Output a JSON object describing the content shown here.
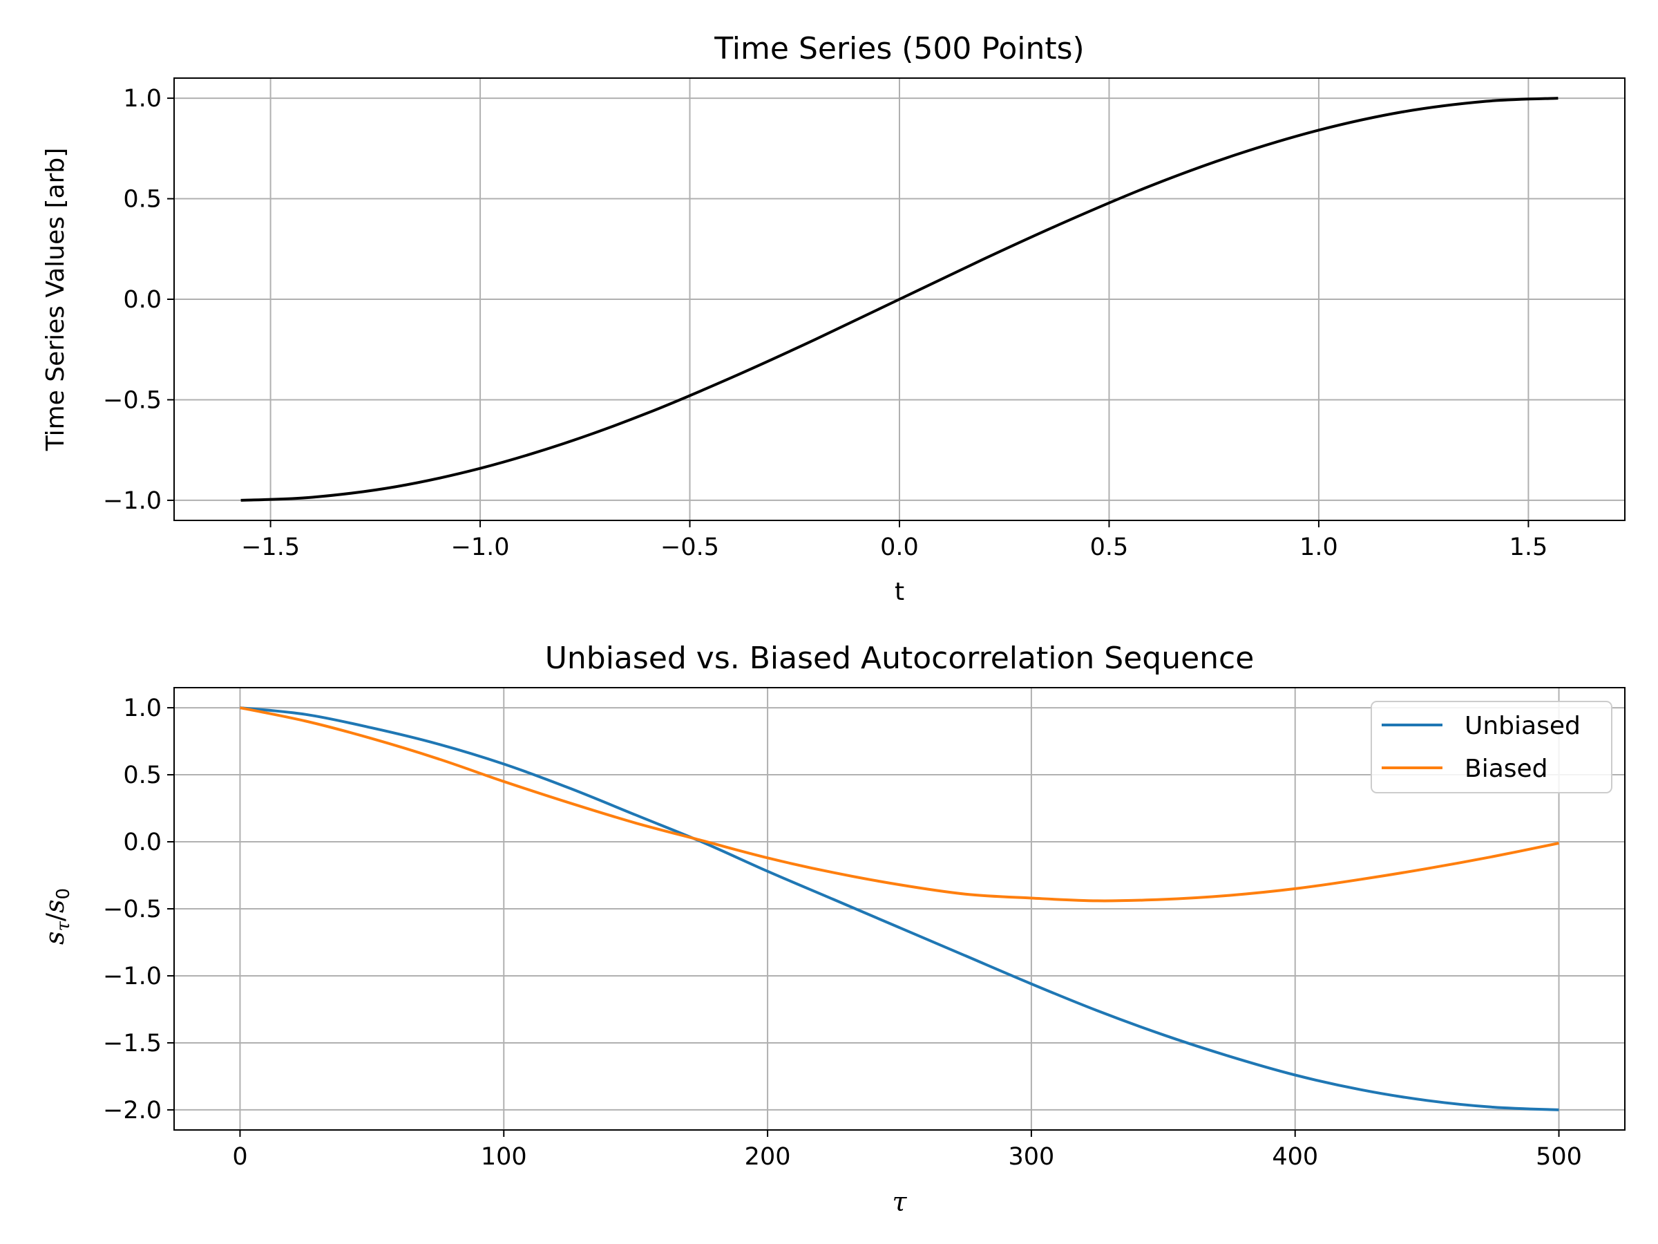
{
  "chart_data": [
    {
      "type": "line",
      "title": "Time Series (500 Points)",
      "xlabel": "t",
      "ylabel": "Time Series Values [arb]",
      "xlim": [
        -1.73,
        1.73
      ],
      "ylim": [
        -1.1,
        1.1
      ],
      "xticks": [
        -1.5,
        -1.0,
        -0.5,
        0.0,
        0.5,
        1.0,
        1.5
      ],
      "xtick_labels": [
        "−1.5",
        "−1.0",
        "−0.5",
        "0.0",
        "0.5",
        "1.0",
        "1.5"
      ],
      "yticks": [
        1.0,
        0.5,
        0.0,
        -0.5,
        -1.0
      ],
      "ytick_labels": [
        "1.0",
        "0.5",
        "0.0",
        "−0.5",
        "−1.0"
      ],
      "grid": true,
      "series": [
        {
          "color": "#000000",
          "x": [
            -1.5708,
            -1.4,
            -1.2,
            -1.0,
            -0.8,
            -0.6,
            -0.4,
            -0.2,
            0.0,
            0.2,
            0.4,
            0.6,
            0.8,
            1.0,
            1.2,
            1.4,
            1.5708
          ],
          "y": [
            -1.0,
            -0.985,
            -0.932,
            -0.841,
            -0.717,
            -0.565,
            -0.389,
            -0.199,
            0.0,
            0.199,
            0.389,
            0.565,
            0.717,
            0.841,
            0.932,
            0.985,
            1.0
          ]
        }
      ]
    },
    {
      "type": "line",
      "title": "Unbiased vs. Biased Autocorrelation Sequence",
      "xlabel": "τ",
      "ylabel": "sτ/s0",
      "xlim": [
        -25,
        525
      ],
      "ylim": [
        -2.15,
        1.15
      ],
      "xticks": [
        0,
        100,
        200,
        300,
        400,
        500
      ],
      "xtick_labels": [
        "0",
        "100",
        "200",
        "300",
        "400",
        "500"
      ],
      "yticks": [
        1.0,
        0.5,
        0.0,
        -0.5,
        -1.0,
        -1.5,
        -2.0
      ],
      "ytick_labels": [
        "1.0",
        "0.5",
        "0.0",
        "−0.5",
        "−1.0",
        "−1.5",
        "−2.0"
      ],
      "grid": true,
      "legend": "top-right",
      "series": [
        {
          "name": "Unbiased",
          "color": "#1f77b4",
          "x": [
            0,
            25,
            50,
            75,
            100,
            125,
            150,
            175,
            200,
            225,
            250,
            275,
            300,
            325,
            350,
            375,
            400,
            425,
            450,
            475,
            500
          ],
          "y": [
            1.0,
            0.95,
            0.85,
            0.73,
            0.58,
            0.4,
            0.2,
            0.0,
            -0.22,
            -0.43,
            -0.64,
            -0.85,
            -1.06,
            -1.26,
            -1.44,
            -1.6,
            -1.74,
            -1.85,
            -1.93,
            -1.98,
            -2.0
          ]
        },
        {
          "name": "Biased",
          "color": "#ff7f0e",
          "x": [
            0,
            25,
            50,
            75,
            100,
            125,
            150,
            175,
            200,
            225,
            250,
            275,
            300,
            325,
            350,
            375,
            400,
            425,
            450,
            475,
            500
          ],
          "y": [
            1.0,
            0.9,
            0.77,
            0.62,
            0.45,
            0.29,
            0.14,
            0.01,
            -0.12,
            -0.23,
            -0.32,
            -0.39,
            -0.42,
            -0.44,
            -0.43,
            -0.4,
            -0.35,
            -0.28,
            -0.2,
            -0.11,
            -0.01
          ]
        }
      ]
    }
  ]
}
